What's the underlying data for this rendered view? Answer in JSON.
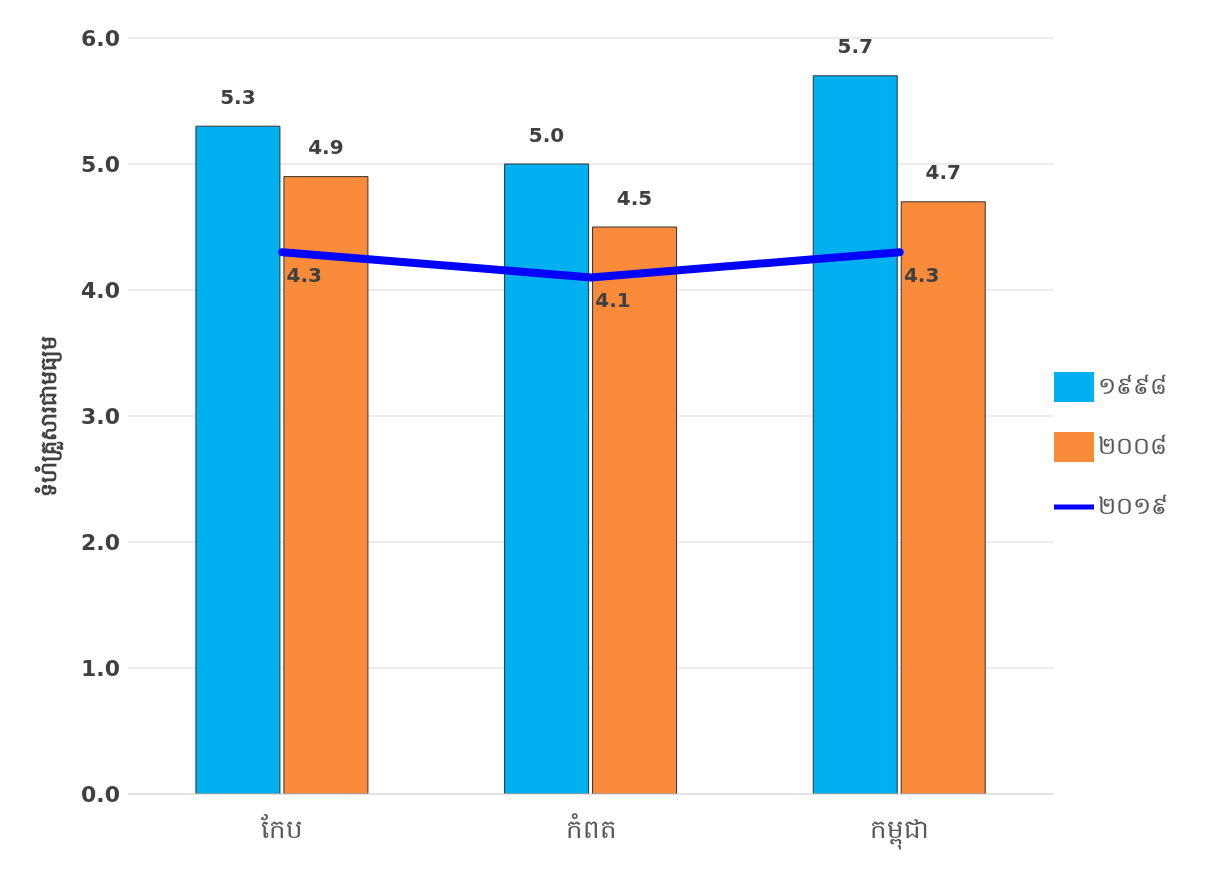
{
  "chart_data": {
    "type": "bar",
    "ylabel": "ទំហំគ្រួសារជាមធ្យម",
    "categories": [
      "កែប",
      "កំពត",
      "កម្ពុជា"
    ],
    "series": [
      {
        "name": "១៩៩៨",
        "color": "#00b0f0",
        "values": [
          5.3,
          5.0,
          5.7
        ],
        "value_labels": [
          "5.3",
          "5.0",
          "5.7"
        ]
      },
      {
        "name": "២០០៨",
        "color": "#f98b3b",
        "values": [
          4.9,
          4.5,
          4.7
        ],
        "value_labels": [
          "4.9",
          "4.5",
          "4.7"
        ]
      },
      {
        "name": "២០១៩",
        "type": "line",
        "color": "#0000ff",
        "values": [
          4.3,
          4.1,
          4.3
        ],
        "value_labels": [
          "4.3",
          "4.1",
          "4.3"
        ]
      }
    ],
    "ylim": [
      0,
      6
    ],
    "yticks": [
      {
        "value": 0,
        "label": "0.0"
      },
      {
        "value": 1,
        "label": "1.0"
      },
      {
        "value": 2,
        "label": "2.0"
      },
      {
        "value": 3,
        "label": "3.0"
      },
      {
        "value": 4,
        "label": "4.0"
      },
      {
        "value": 5,
        "label": "5.0"
      },
      {
        "value": 6,
        "label": "6.0"
      }
    ],
    "grid": "y",
    "legend": "right",
    "marker": "none"
  }
}
